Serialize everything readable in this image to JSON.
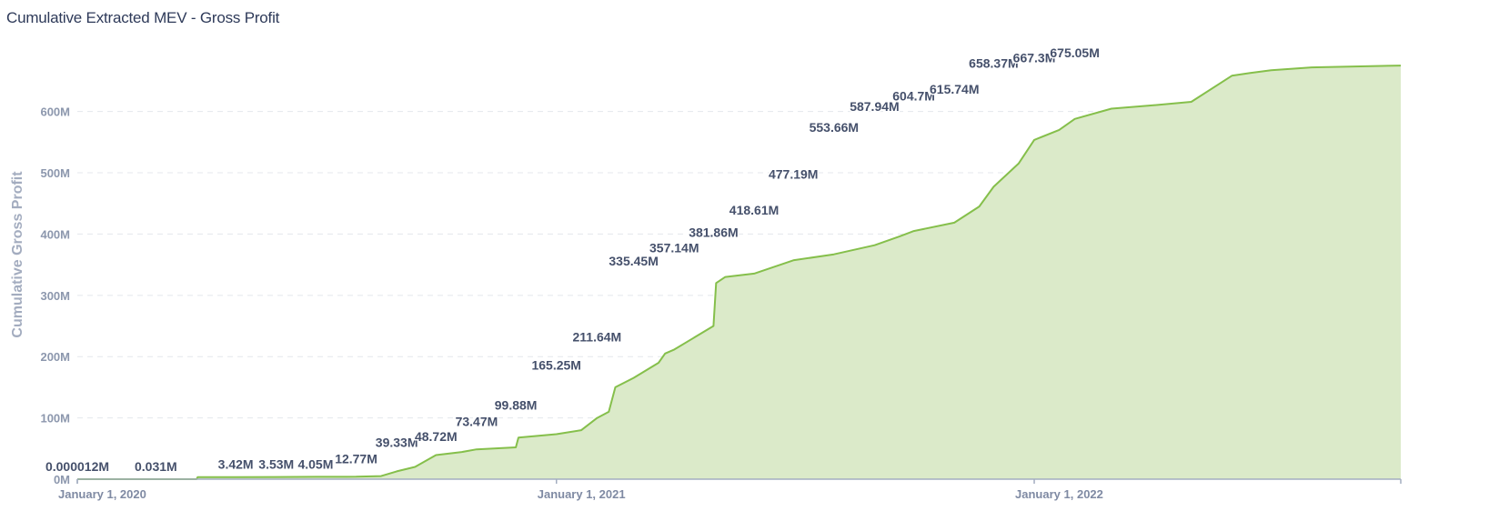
{
  "chart_data": {
    "type": "area",
    "title": "Cumulative Extracted MEV - Gross Profit",
    "xlabel": "",
    "ylabel": "Cumulative Gross Profit",
    "x_ticks": [
      {
        "label": "January 1, 2020",
        "date": "2020-01-01"
      },
      {
        "label": "January 1, 2021",
        "date": "2021-01-01"
      },
      {
        "label": "January 1, 2022",
        "date": "2022-01-01"
      }
    ],
    "y_ticks": [
      {
        "label": "0M",
        "value": 0
      },
      {
        "label": "100M",
        "value": 100
      },
      {
        "label": "200M",
        "value": 200
      },
      {
        "label": "300M",
        "value": 300
      },
      {
        "label": "400M",
        "value": 400
      },
      {
        "label": "500M",
        "value": 500
      },
      {
        "label": "600M",
        "value": 600
      }
    ],
    "y_unit": "M",
    "xlim": [
      "2020-01-01",
      "2022-10-08"
    ],
    "ylim": [
      0,
      690
    ],
    "grid": true,
    "colors": {
      "line": "#85bf4b",
      "fill": "#dbeac9",
      "grid": "#e4e7ec",
      "axis": "#a3adc0"
    },
    "series": [
      {
        "points": [
          [
            "2020-01-01",
            1.2e-05
          ],
          [
            "2020-02-01",
            0.0003
          ],
          [
            "2020-03-01",
            0.031
          ],
          [
            "2020-04-01",
            0.031
          ],
          [
            "2020-04-02",
            3.42
          ],
          [
            "2020-05-01",
            3.45
          ],
          [
            "2020-06-01",
            3.53
          ],
          [
            "2020-07-01",
            3.8
          ],
          [
            "2020-08-01",
            4.05
          ],
          [
            "2020-08-20",
            5.0
          ],
          [
            "2020-09-01",
            12.77
          ],
          [
            "2020-09-15",
            20.0
          ],
          [
            "2020-10-01",
            39.33
          ],
          [
            "2020-10-20",
            44.0
          ],
          [
            "2020-11-01",
            48.72
          ],
          [
            "2020-12-01",
            52.0
          ],
          [
            "2020-12-03",
            68.0
          ],
          [
            "2021-01-01",
            73.47
          ],
          [
            "2021-01-20",
            80.0
          ],
          [
            "2021-02-01",
            99.88
          ],
          [
            "2021-02-10",
            110.0
          ],
          [
            "2021-02-15",
            150.0
          ],
          [
            "2021-03-01",
            165.25
          ],
          [
            "2021-03-20",
            190.0
          ],
          [
            "2021-03-25",
            205.0
          ],
          [
            "2021-04-01",
            211.64
          ],
          [
            "2021-05-01",
            250.0
          ],
          [
            "2021-05-03",
            320.0
          ],
          [
            "2021-05-10",
            330.0
          ],
          [
            "2021-06-01",
            335.45
          ],
          [
            "2021-07-01",
            357.14
          ],
          [
            "2021-08-01",
            367.0
          ],
          [
            "2021-09-01",
            381.86
          ],
          [
            "2021-09-20",
            396.0
          ],
          [
            "2021-10-01",
            405.0
          ],
          [
            "2021-11-01",
            418.61
          ],
          [
            "2021-11-20",
            445.0
          ],
          [
            "2021-12-01",
            477.19
          ],
          [
            "2021-12-20",
            515.0
          ],
          [
            "2022-01-01",
            553.66
          ],
          [
            "2022-01-20",
            570.0
          ],
          [
            "2022-02-01",
            587.94
          ],
          [
            "2022-03-01",
            604.7
          ],
          [
            "2022-04-01",
            610.0
          ],
          [
            "2022-05-01",
            615.74
          ],
          [
            "2022-06-01",
            658.37
          ],
          [
            "2022-06-15",
            663.0
          ],
          [
            "2022-07-01",
            667.3
          ],
          [
            "2022-08-01",
            672.0
          ],
          [
            "2022-10-08",
            675.05
          ]
        ]
      }
    ],
    "data_labels": [
      {
        "date": "2020-01-01",
        "value": 1.2e-05,
        "text": "0.000012M"
      },
      {
        "date": "2020-03-01",
        "value": 0.031,
        "text": "0.031M"
      },
      {
        "date": "2020-05-01",
        "value": 3.42,
        "text": "3.42M"
      },
      {
        "date": "2020-06-01",
        "value": 3.53,
        "text": "3.53M"
      },
      {
        "date": "2020-07-01",
        "value": 4.05,
        "text": "4.05M"
      },
      {
        "date": "2020-08-01",
        "value": 12.77,
        "text": "12.77M"
      },
      {
        "date": "2020-09-01",
        "value": 39.33,
        "text": "39.33M"
      },
      {
        "date": "2020-10-01",
        "value": 48.72,
        "text": "48.72M"
      },
      {
        "date": "2020-11-01",
        "value": 73.47,
        "text": "73.47M"
      },
      {
        "date": "2020-12-01",
        "value": 99.88,
        "text": "99.88M"
      },
      {
        "date": "2021-01-01",
        "value": 165.25,
        "text": "165.25M"
      },
      {
        "date": "2021-02-01",
        "value": 211.64,
        "text": "211.64M"
      },
      {
        "date": "2021-03-01",
        "value": 335.45,
        "text": "335.45M"
      },
      {
        "date": "2021-04-01",
        "value": 357.14,
        "text": "357.14M"
      },
      {
        "date": "2021-05-01",
        "value": 381.86,
        "text": "381.86M"
      },
      {
        "date": "2021-06-01",
        "value": 418.61,
        "text": "418.61M"
      },
      {
        "date": "2021-07-01",
        "value": 477.19,
        "text": "477.19M"
      },
      {
        "date": "2021-08-01",
        "value": 553.66,
        "text": "553.66M"
      },
      {
        "date": "2021-09-01",
        "value": 587.94,
        "text": "587.94M"
      },
      {
        "date": "2021-10-01",
        "value": 604.7,
        "text": "604.7M"
      },
      {
        "date": "2021-11-01",
        "value": 615.74,
        "text": "615.74M"
      },
      {
        "date": "2021-12-01",
        "value": 658.37,
        "text": "658.37M"
      },
      {
        "date": "2022-01-01",
        "value": 667.3,
        "text": "667.3M"
      },
      {
        "date": "2022-02-01",
        "value": 675.05,
        "text": "675.05M"
      }
    ]
  }
}
